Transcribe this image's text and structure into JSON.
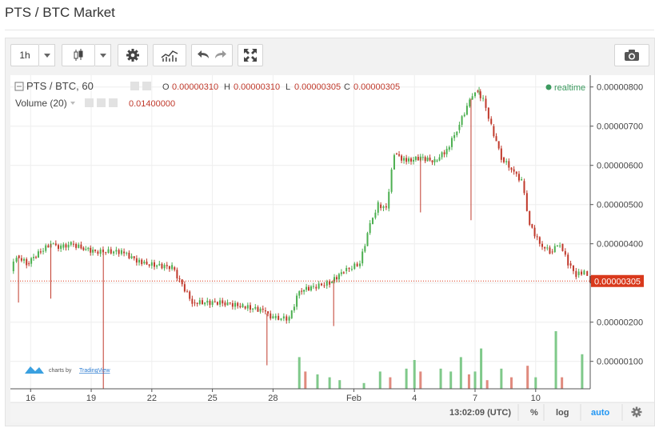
{
  "page": {
    "title": "PTS / BTC Market"
  },
  "toolbar": {
    "interval": "1h",
    "icons": [
      "candles-icon",
      "gear-icon",
      "indicators-icon",
      "undo-icon",
      "redo-icon",
      "fullscreen-icon",
      "camera-icon"
    ]
  },
  "legend": {
    "symbol": "PTS / BTC, 60",
    "o_label": "O",
    "o_value": "0.00000310",
    "h_label": "H",
    "h_value": "0.00000310",
    "l_label": "L",
    "l_value": "0.00000305",
    "c_label": "C",
    "c_value": "0.00000305",
    "volume_label": "Volume (20)",
    "volume_value": "0.01400000",
    "realtime": "realtime"
  },
  "statusbar": {
    "time": "13:02:09 (UTC)",
    "percent": "%",
    "log": "log",
    "auto": "auto"
  },
  "branding": {
    "prefix": "charts by",
    "name": "TradingView"
  },
  "colors": {
    "up": "#4caf50",
    "down": "#c0392b",
    "last_price_line": "#d9391c",
    "accent": "#2196f3",
    "realtime_dot": "#3c9a5f"
  },
  "chart_data": {
    "type": "candlestick",
    "ylim": [
      3e-07,
      8.3e-06
    ],
    "y_ticks": [
      "0.00000800",
      "0.00000700",
      "0.00000600",
      "0.00000500",
      "0.00000400",
      "0.00000300",
      "0.00000200",
      "0.00000100"
    ],
    "y_tick_values": [
      8e-06,
      7e-06,
      6e-06,
      5e-06,
      4e-06,
      3e-06,
      2e-06,
      1e-06
    ],
    "x_ticks": [
      "16",
      "19",
      "22",
      "25",
      "28",
      "Feb",
      "4",
      "7",
      "10"
    ],
    "x_tick_days": [
      16,
      19,
      22,
      25,
      28,
      32,
      35,
      38,
      41
    ],
    "x_range_days": [
      15,
      43.7
    ],
    "last_price": "0.00000305",
    "last_price_value": 3.05e-06,
    "price_points": [
      {
        "day": 15.0,
        "price": 3.3e-06
      },
      {
        "day": 15.3,
        "price": 3.7e-06
      },
      {
        "day": 15.8,
        "price": 3.5e-06
      },
      {
        "day": 16.5,
        "price": 3.8e-06
      },
      {
        "day": 17.0,
        "price": 4e-06
      },
      {
        "day": 17.5,
        "price": 3.9e-06
      },
      {
        "day": 18.0,
        "price": 4e-06
      },
      {
        "day": 18.5,
        "price": 3.9e-06
      },
      {
        "day": 19.2,
        "price": 3.8e-06
      },
      {
        "day": 20.5,
        "price": 3.8e-06
      },
      {
        "day": 21.5,
        "price": 3.5e-06
      },
      {
        "day": 23.0,
        "price": 3.4e-06
      },
      {
        "day": 24.0,
        "price": 2.5e-06
      },
      {
        "day": 25.5,
        "price": 2.5e-06
      },
      {
        "day": 26.5,
        "price": 2.4e-06
      },
      {
        "day": 27.5,
        "price": 2.3e-06
      },
      {
        "day": 28.0,
        "price": 2.1e-06
      },
      {
        "day": 28.8,
        "price": 2.1e-06
      },
      {
        "day": 29.3,
        "price": 2.8e-06
      },
      {
        "day": 30.0,
        "price": 2.9e-06
      },
      {
        "day": 30.8,
        "price": 3e-06
      },
      {
        "day": 31.5,
        "price": 3.3e-06
      },
      {
        "day": 32.3,
        "price": 3.5e-06
      },
      {
        "day": 32.8,
        "price": 4.5e-06
      },
      {
        "day": 33.2,
        "price": 5e-06
      },
      {
        "day": 33.6,
        "price": 4.9e-06
      },
      {
        "day": 34.0,
        "price": 6.3e-06
      },
      {
        "day": 34.6,
        "price": 6.1e-06
      },
      {
        "day": 35.3,
        "price": 6.2e-06
      },
      {
        "day": 36.0,
        "price": 6.1e-06
      },
      {
        "day": 36.6,
        "price": 6.4e-06
      },
      {
        "day": 37.1,
        "price": 6.9e-06
      },
      {
        "day": 37.6,
        "price": 7.5e-06
      },
      {
        "day": 38.0,
        "price": 7.9e-06
      },
      {
        "day": 38.4,
        "price": 7.7e-06
      },
      {
        "day": 38.8,
        "price": 7e-06
      },
      {
        "day": 39.3,
        "price": 6.2e-06
      },
      {
        "day": 39.8,
        "price": 5.9e-06
      },
      {
        "day": 40.3,
        "price": 5.6e-06
      },
      {
        "day": 40.7,
        "price": 4.5e-06
      },
      {
        "day": 41.2,
        "price": 4e-06
      },
      {
        "day": 41.7,
        "price": 3.8e-06
      },
      {
        "day": 42.2,
        "price": 4e-06
      },
      {
        "day": 42.6,
        "price": 3.5e-06
      },
      {
        "day": 43.0,
        "price": 3.2e-06
      },
      {
        "day": 43.4,
        "price": 3.3e-06
      },
      {
        "day": 43.7,
        "price": 3.05e-06
      }
    ],
    "wick_extremes": [
      {
        "day": 15.4,
        "low": 2.5e-06
      },
      {
        "day": 17.0,
        "low": 2.6e-06
      },
      {
        "day": 19.6,
        "low": 3e-07
      },
      {
        "day": 27.7,
        "low": 9e-07
      },
      {
        "day": 31.0,
        "low": 1.9e-06
      },
      {
        "day": 35.3,
        "low": 4.8e-06
      },
      {
        "day": 37.8,
        "low": 4.6e-06
      },
      {
        "day": 38.2,
        "high": 8e-06
      }
    ],
    "volume_bars": [
      {
        "day": 29.3,
        "height": 0.55,
        "up": true
      },
      {
        "day": 29.6,
        "height": 0.3,
        "up": false
      },
      {
        "day": 30.2,
        "height": 0.25,
        "up": true
      },
      {
        "day": 30.8,
        "height": 0.2,
        "up": true
      },
      {
        "day": 31.3,
        "height": 0.15,
        "up": true
      },
      {
        "day": 32.5,
        "height": 0.1,
        "up": true
      },
      {
        "day": 33.3,
        "height": 0.3,
        "up": true
      },
      {
        "day": 33.8,
        "height": 0.2,
        "up": false
      },
      {
        "day": 34.6,
        "height": 0.35,
        "up": true
      },
      {
        "day": 35.0,
        "height": 0.5,
        "up": true
      },
      {
        "day": 35.3,
        "height": 0.3,
        "up": false
      },
      {
        "day": 36.3,
        "height": 0.35,
        "up": true
      },
      {
        "day": 36.8,
        "height": 0.3,
        "up": true
      },
      {
        "day": 37.3,
        "height": 0.55,
        "up": true
      },
      {
        "day": 37.7,
        "height": 0.25,
        "up": false
      },
      {
        "day": 38.0,
        "height": 0.3,
        "up": true
      },
      {
        "day": 38.3,
        "height": 0.7,
        "up": true
      },
      {
        "day": 38.6,
        "height": 0.15,
        "up": false
      },
      {
        "day": 39.3,
        "height": 0.35,
        "up": true
      },
      {
        "day": 39.8,
        "height": 0.2,
        "up": false
      },
      {
        "day": 40.6,
        "height": 0.4,
        "up": false
      },
      {
        "day": 41.0,
        "height": 0.2,
        "up": true
      },
      {
        "day": 42.0,
        "height": 1.0,
        "up": true
      },
      {
        "day": 42.3,
        "height": 0.2,
        "up": false
      },
      {
        "day": 43.3,
        "height": 0.6,
        "up": true
      }
    ]
  }
}
